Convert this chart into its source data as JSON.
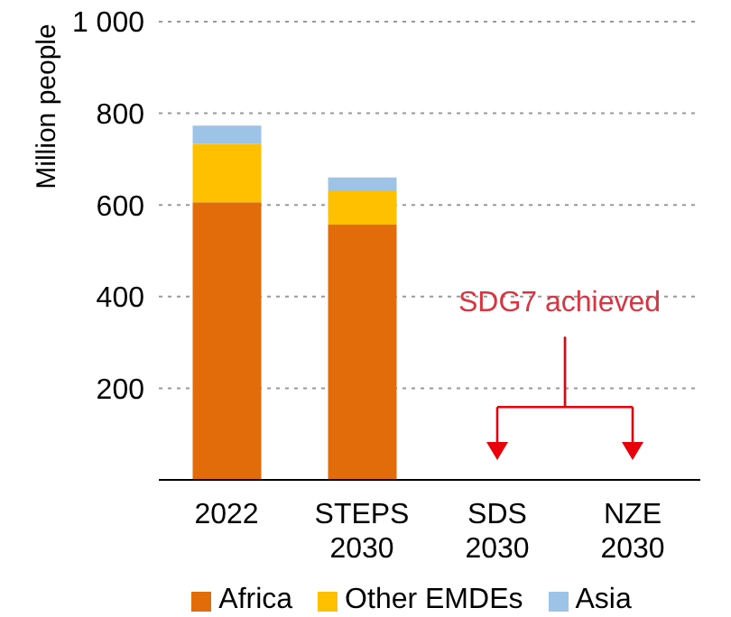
{
  "chart_data": {
    "type": "bar",
    "stacked": true,
    "ylabel": "Million people",
    "categories": [
      "2022",
      "STEPS\n2030",
      "SDS\n2030",
      "NZE\n2030"
    ],
    "series": [
      {
        "name": "Africa",
        "color": "#e36c0a",
        "values": [
          606,
          557,
          0,
          0
        ]
      },
      {
        "name": "Other EMDEs",
        "color": "#ffc000",
        "values": [
          128,
          73,
          0,
          0
        ]
      },
      {
        "name": "Asia",
        "color": "#9dc3e6",
        "values": [
          39,
          30,
          0,
          0
        ]
      }
    ],
    "ylim": [
      0,
      1000
    ],
    "yticks": [
      {
        "value": 0,
        "label": null
      },
      200,
      400,
      600,
      800,
      {
        "value": 1000,
        "label": "1 000"
      }
    ],
    "grid": "y",
    "legend": "bottom",
    "annotations": [
      "SDG7 achieved"
    ]
  }
}
